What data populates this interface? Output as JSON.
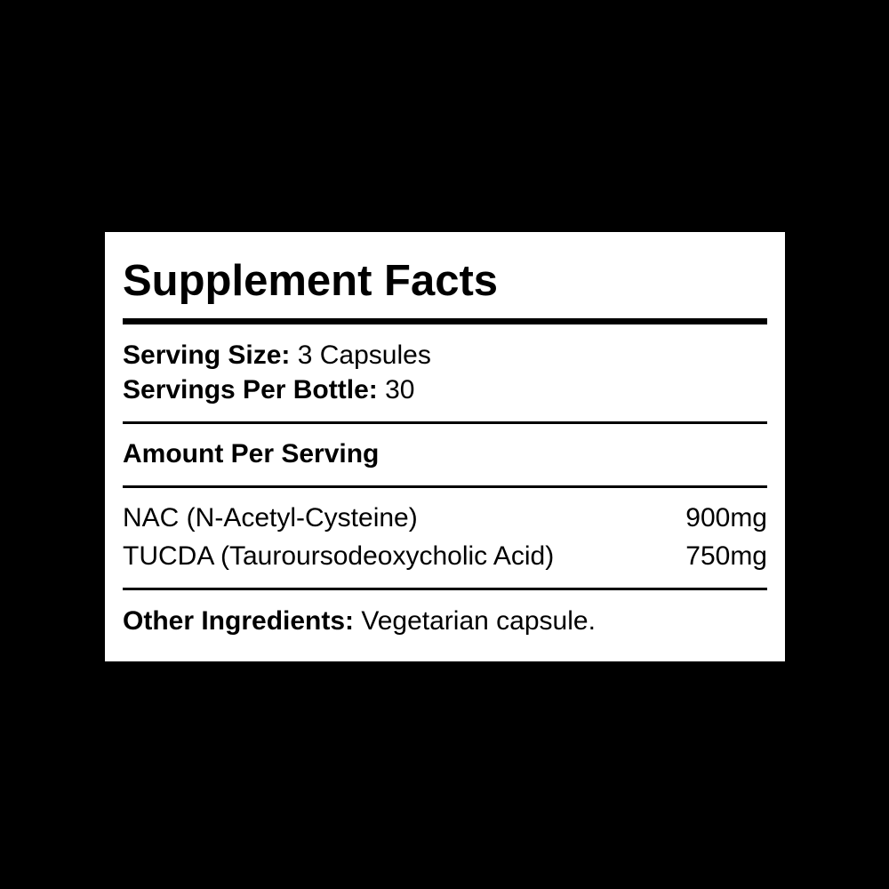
{
  "title": "Supplement Facts",
  "serving_size": {
    "label": "Serving Size:",
    "value": "3 Capsules"
  },
  "servings_per": {
    "label": "Servings Per Bottle:",
    "value": "30"
  },
  "amount_header": "Amount Per Serving",
  "ingredients": [
    {
      "name": "NAC (N-Acetyl-Cysteine)",
      "amount": "900mg"
    },
    {
      "name": "TUCDA (Tauroursodeoxycholic Acid)",
      "amount": "750mg"
    }
  ],
  "other": {
    "label": "Other Ingredients:",
    "value": "Vegetarian capsule."
  }
}
